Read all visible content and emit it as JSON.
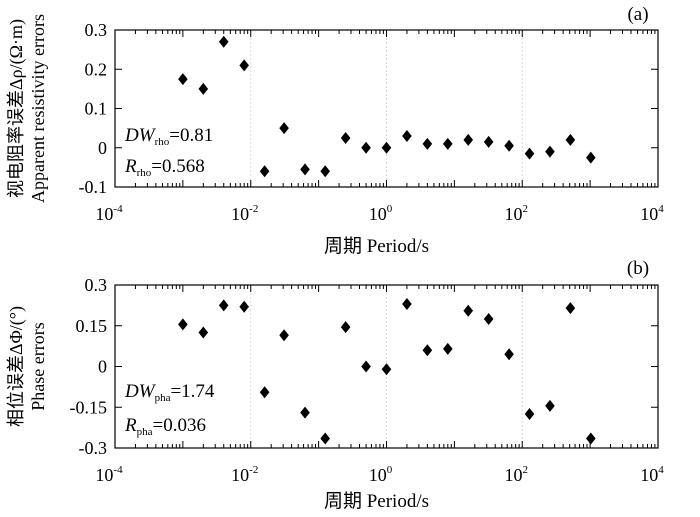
{
  "chart_data": [
    {
      "type": "scatter",
      "panel_label": "(a)",
      "ylabel_cn": "视电阻率误差Δρ/(Ω·m)",
      "ylabel_en": "Apparent resistivity errors",
      "xlabel_cn": "周期",
      "xlabel_en": "Period/s",
      "x_scale": "log",
      "xlim": [
        0.0001,
        10000
      ],
      "ylim": [
        -0.1,
        0.3
      ],
      "x_ticks": [
        {
          "base": "10",
          "exp": "-4"
        },
        {
          "base": "10",
          "exp": "-2"
        },
        {
          "base": "10",
          "exp": "0"
        },
        {
          "base": "10",
          "exp": "2"
        },
        {
          "base": "10",
          "exp": "4"
        }
      ],
      "y_ticks": [
        "0.3",
        "0.2",
        "0.1",
        "0",
        "-0.1"
      ],
      "y_tick_values": [
        0.3,
        0.2,
        0.1,
        0,
        -0.1
      ],
      "grid": "vertical dashed at decades",
      "marker": "diamond",
      "stats": [
        {
          "sym": "DW",
          "sub": "rho",
          "val": "=0.81"
        },
        {
          "sym": "R",
          "sub": "rho",
          "val": "=0.568"
        }
      ],
      "x": [
        0.001,
        0.002,
        0.004,
        0.008,
        0.016,
        0.031,
        0.063,
        0.125,
        0.25,
        0.5,
        1,
        2,
        4,
        8,
        16,
        32,
        64,
        128,
        256,
        512,
        1024
      ],
      "y": [
        0.175,
        0.15,
        0.27,
        0.21,
        -0.06,
        0.05,
        -0.055,
        -0.06,
        0.025,
        0.0,
        0.0,
        0.03,
        0.01,
        0.01,
        0.02,
        0.015,
        0.005,
        -0.015,
        -0.01,
        0.02,
        -0.025
      ]
    },
    {
      "type": "scatter",
      "panel_label": "(b)",
      "ylabel_cn": "相位误差ΔΦ/(°)",
      "ylabel_en": "Phase errors",
      "xlabel_cn": "周期",
      "xlabel_en": "Period/s",
      "x_scale": "log",
      "xlim": [
        0.0001,
        10000
      ],
      "ylim": [
        -0.3,
        0.3
      ],
      "x_ticks": [
        {
          "base": "10",
          "exp": "-4"
        },
        {
          "base": "10",
          "exp": "-2"
        },
        {
          "base": "10",
          "exp": "0"
        },
        {
          "base": "10",
          "exp": "2"
        },
        {
          "base": "10",
          "exp": "4"
        }
      ],
      "y_ticks": [
        "0.3",
        "0.15",
        "0",
        "-0.15",
        "-0.3"
      ],
      "y_tick_values": [
        0.3,
        0.15,
        0,
        -0.15,
        -0.3
      ],
      "grid": "vertical dashed at decades",
      "marker": "diamond",
      "stats": [
        {
          "sym": "DW",
          "sub": "pha",
          "val": "=1.74"
        },
        {
          "sym": "R",
          "sub": "pha",
          "val": "=0.036"
        }
      ],
      "x": [
        0.001,
        0.002,
        0.004,
        0.008,
        0.016,
        0.031,
        0.063,
        0.125,
        0.25,
        0.5,
        1,
        2,
        4,
        8,
        16,
        32,
        64,
        128,
        256,
        512,
        1024
      ],
      "y": [
        0.155,
        0.125,
        0.225,
        0.22,
        -0.095,
        0.115,
        -0.17,
        -0.265,
        0.145,
        0.0,
        -0.01,
        0.23,
        0.06,
        0.065,
        0.205,
        0.175,
        0.045,
        -0.175,
        -0.145,
        0.215,
        -0.265
      ]
    }
  ]
}
